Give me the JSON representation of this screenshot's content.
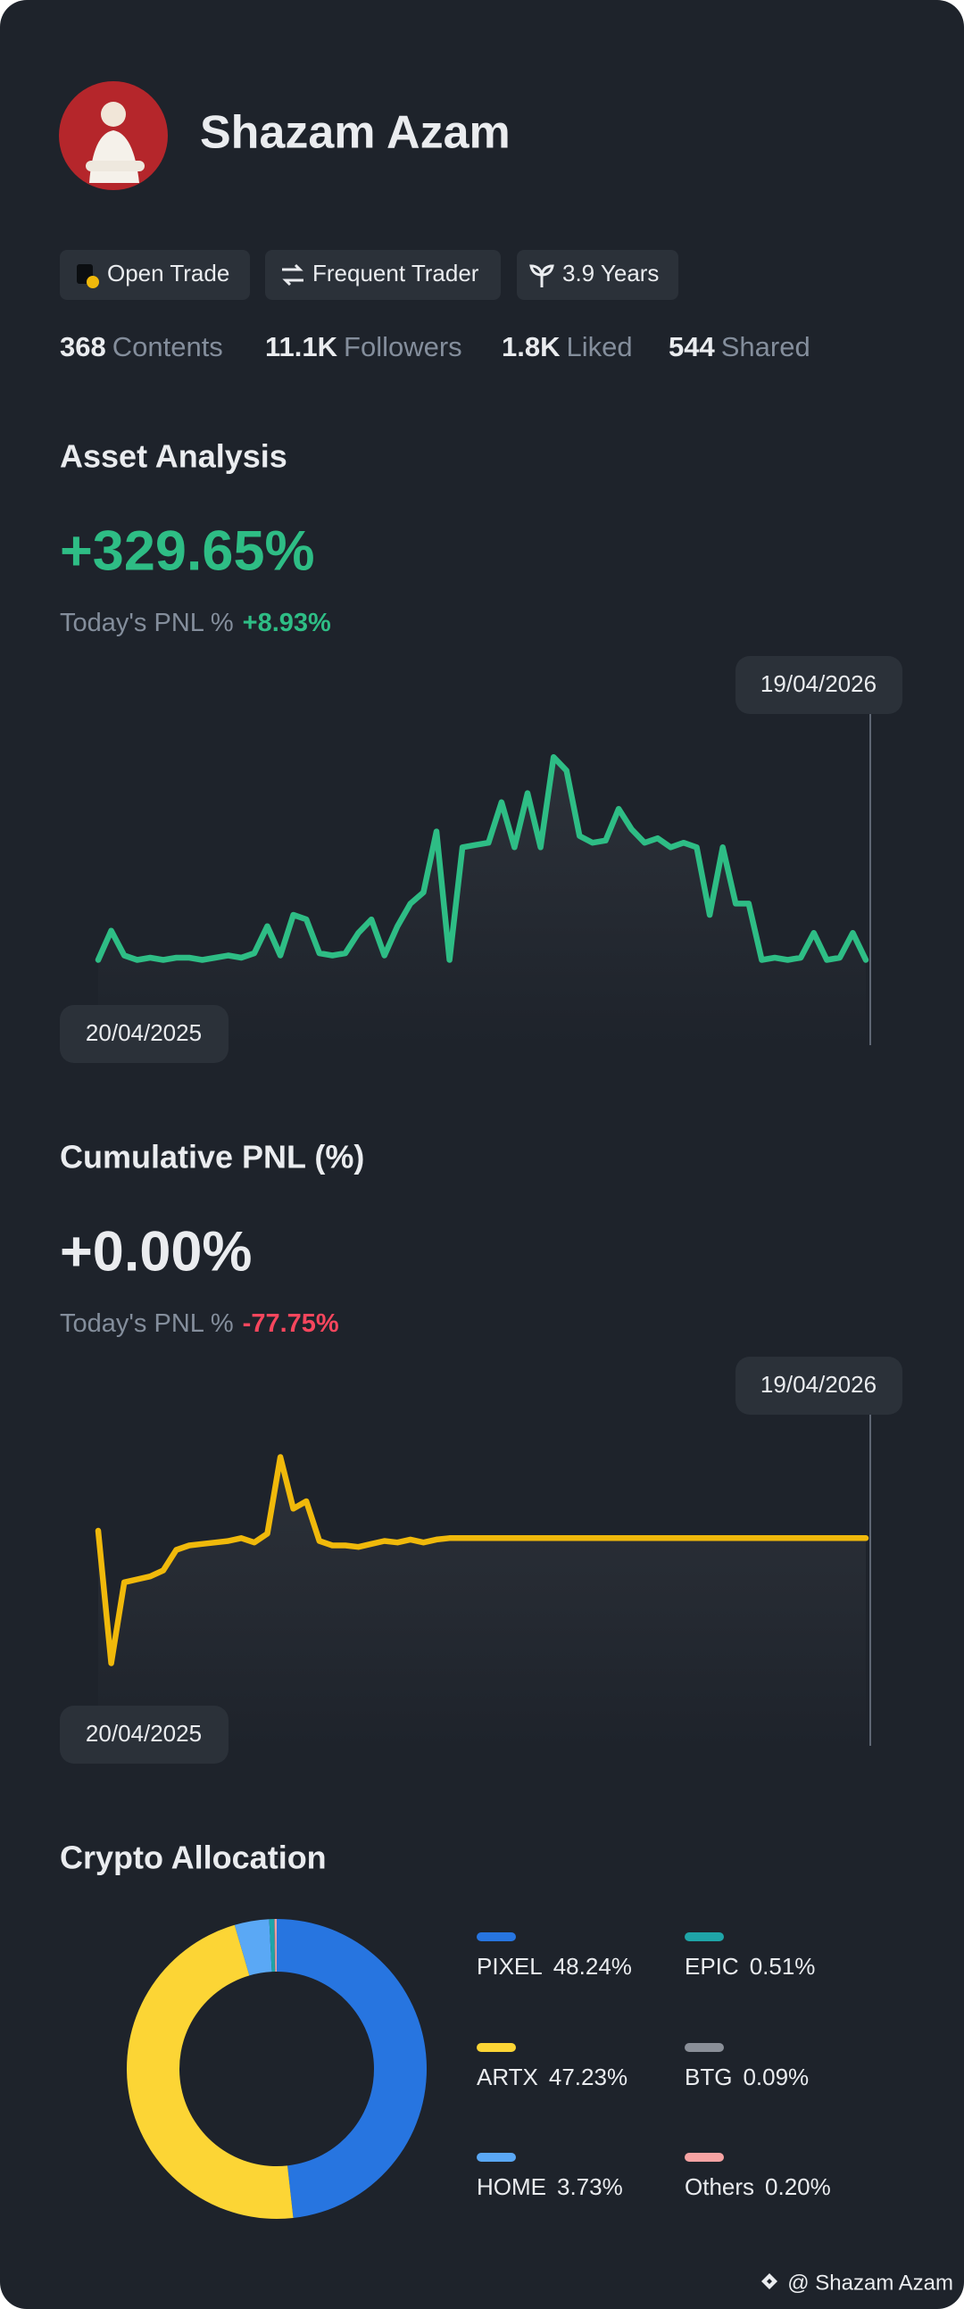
{
  "profile": {
    "name": "Shazam Azam",
    "badges": [
      "Open Trade",
      "Frequent Trader",
      "3.9 Years"
    ],
    "stats": [
      {
        "value": "368",
        "label": "Contents"
      },
      {
        "value": "11.1K",
        "label": "Followers"
      },
      {
        "value": "1.8K",
        "label": "Liked"
      },
      {
        "value": "544",
        "label": "Shared"
      }
    ]
  },
  "chart_data": [
    {
      "type": "line",
      "title": "Asset Analysis",
      "headline": "+329.65%",
      "change_label": "Today's PNL %",
      "change_value": "+8.93%",
      "change_color": "#2ebd85",
      "headline_color": "#2ebd85",
      "start_date": "20/04/2025",
      "end_date": "19/04/2026",
      "color": "#2ebd85",
      "ylim": [
        -18,
        119
      ],
      "values": [
        0,
        13,
        2,
        0,
        1,
        0,
        1,
        1,
        0,
        1,
        2,
        1,
        3,
        15,
        2,
        20,
        18,
        3,
        2,
        3,
        12,
        18,
        2,
        15,
        25,
        30,
        57,
        0,
        50,
        51,
        52,
        70,
        50,
        74,
        50,
        90,
        84,
        55,
        52,
        53,
        67,
        58,
        52,
        54,
        50,
        52,
        50,
        20,
        50,
        25,
        25,
        0,
        1,
        0,
        1,
        12,
        0,
        1,
        12,
        0
      ]
    },
    {
      "type": "line",
      "title": "Cumulative PNL (%)",
      "headline": "+0.00%",
      "change_label": "Today's PNL %",
      "change_value": "-77.75%",
      "change_color": "#f6465d",
      "headline_color": "#eaecef",
      "start_date": "20/04/2025",
      "end_date": "19/04/2026",
      "color": "#f0b90b",
      "ylim": [
        -115,
        85
      ],
      "values": [
        5,
        -85,
        -30,
        -28,
        -26,
        -22,
        -8,
        -5,
        -4,
        -3,
        -2,
        0,
        -3,
        3,
        55,
        20,
        25,
        -2,
        -5,
        -5,
        -6,
        -4,
        -2,
        -3,
        -1,
        -3,
        -1,
        0,
        0,
        0,
        0,
        0,
        0,
        0,
        0,
        0,
        0,
        0,
        0,
        0,
        0,
        0,
        0,
        0,
        0,
        0,
        0,
        0,
        0,
        0,
        0,
        0,
        0,
        0,
        0,
        0,
        0,
        0,
        0,
        0
      ]
    },
    {
      "type": "donut",
      "title": "Crypto Allocation",
      "categories": [
        "PIXEL",
        "ARTX",
        "HOME",
        "EPIC",
        "BTG",
        "Others"
      ],
      "values": [
        48.24,
        47.23,
        3.73,
        0.51,
        0.09,
        0.2
      ],
      "value_labels": [
        "48.24%",
        "47.23%",
        "3.73%",
        "0.51%",
        "0.09%",
        "0.20%"
      ],
      "colors": [
        "#2775e0",
        "#fcd535",
        "#5aa8f5",
        "#1fa5a8",
        "#8a8f98",
        "#f6a3a3"
      ]
    }
  ],
  "footer": "@ Shazam Azam"
}
